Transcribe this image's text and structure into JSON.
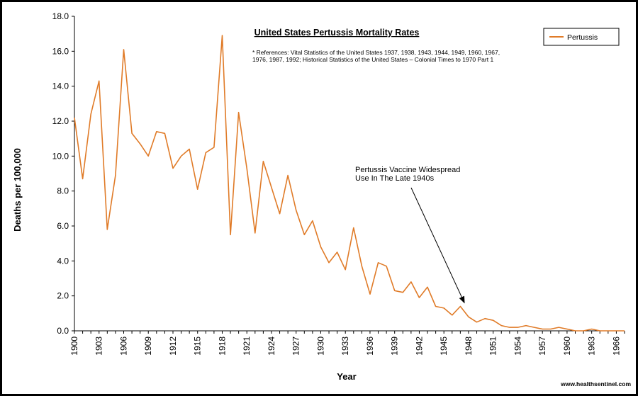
{
  "chart_data": {
    "type": "line",
    "title": "United States Pertussis Mortality Rates",
    "references": [
      "* References: Vital Statistics of the United States 1937, 1938, 1943, 1944, 1949, 1960, 1967,",
      "1976, 1987, 1992; Historical Statistics of the United States – Colonial Times to 1970 Part 1"
    ],
    "xlabel": "Year",
    "ylabel": "Deaths per 100,000",
    "xlim": [
      1900,
      1967
    ],
    "ylim": [
      0,
      18
    ],
    "y_ticks": [
      "0.0",
      "2.0",
      "4.0",
      "6.0",
      "8.0",
      "10.0",
      "12.0",
      "14.0",
      "16.0",
      "18.0"
    ],
    "x_tick_labels": [
      "1900",
      "1903",
      "1906",
      "1909",
      "1912",
      "1915",
      "1918",
      "1921",
      "1924",
      "1927",
      "1930",
      "1933",
      "1936",
      "1939",
      "1942",
      "1945",
      "1948",
      "1951",
      "1954",
      "1957",
      "1960",
      "1963",
      "1966"
    ],
    "grid": false,
    "legend_position": "top-right",
    "series": [
      {
        "name": "Pertussis",
        "color": "#e07b28",
        "x": [
          1900,
          1901,
          1902,
          1903,
          1904,
          1905,
          1906,
          1907,
          1908,
          1909,
          1910,
          1911,
          1912,
          1913,
          1914,
          1915,
          1916,
          1917,
          1918,
          1919,
          1920,
          1921,
          1922,
          1923,
          1924,
          1925,
          1926,
          1927,
          1928,
          1929,
          1930,
          1931,
          1932,
          1933,
          1934,
          1935,
          1936,
          1937,
          1938,
          1939,
          1940,
          1941,
          1942,
          1943,
          1944,
          1945,
          1946,
          1947,
          1948,
          1949,
          1950,
          1951,
          1952,
          1953,
          1954,
          1955,
          1956,
          1957,
          1958,
          1959,
          1960,
          1961,
          1962,
          1963,
          1964,
          1965,
          1966,
          1967
        ],
        "y": [
          12.2,
          8.7,
          12.4,
          14.3,
          5.8,
          8.9,
          16.1,
          11.3,
          10.7,
          10.0,
          11.4,
          11.3,
          9.3,
          10.0,
          10.4,
          8.1,
          10.2,
          10.5,
          16.9,
          5.5,
          12.5,
          9.3,
          5.6,
          9.7,
          8.2,
          6.7,
          8.9,
          6.9,
          5.5,
          6.3,
          4.8,
          3.9,
          4.5,
          3.5,
          5.9,
          3.7,
          2.1,
          3.9,
          3.7,
          2.3,
          2.2,
          2.8,
          1.9,
          2.5,
          1.4,
          1.3,
          0.9,
          1.4,
          0.8,
          0.5,
          0.7,
          0.6,
          0.3,
          0.2,
          0.2,
          0.3,
          0.2,
          0.1,
          0.1,
          0.2,
          0.1,
          0.0,
          0.0,
          0.1,
          0.0,
          0.0,
          0.0,
          0.0
        ]
      }
    ],
    "annotation": {
      "lines": [
        "Pertussis  Vaccine Widespread",
        "Use In The  Late  1940s"
      ],
      "points_to_year": 1947.5,
      "points_to_value": 1.6
    },
    "footer": "www.healthsentinel.com"
  }
}
